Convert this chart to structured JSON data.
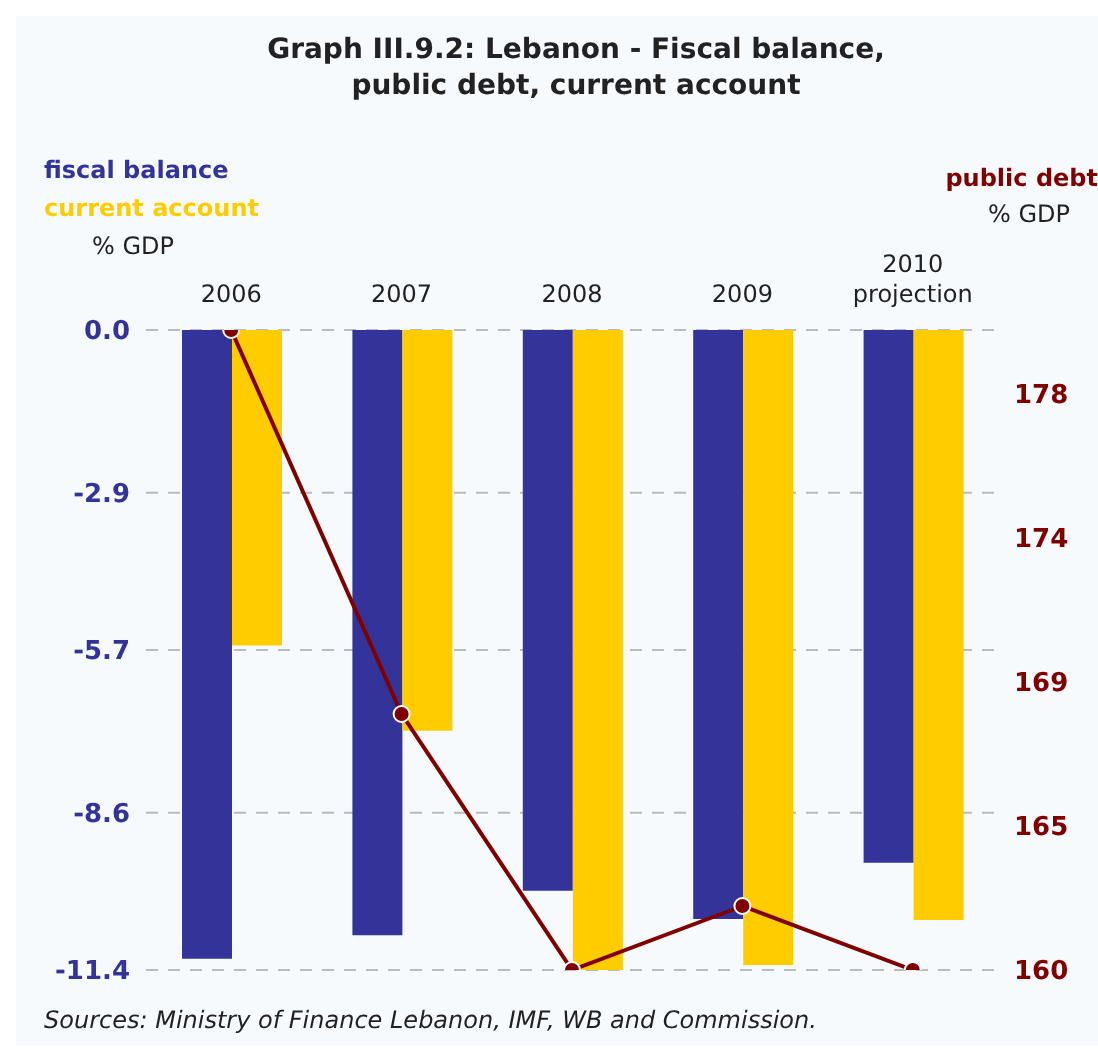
{
  "chart_data": {
    "type": "bar",
    "title": "Graph III.9.2: Lebanon - Fiscal balance, public debt, current account",
    "categories": [
      "2006",
      "2007",
      "2008",
      "2009",
      "2010 projection"
    ],
    "ylabel": "% GDP",
    "y2label": "% GDP",
    "series": [
      {
        "name": "fiscal balance",
        "color": "#333399",
        "values": [
          -11.2,
          -10.78,
          -9.99,
          -10.49,
          -9.49
        ]
      },
      {
        "name": "current account",
        "color": "#ffcc00",
        "values": [
          -5.62,
          -7.14,
          -11.4,
          -11.31,
          -10.51
        ]
      },
      {
        "name": "public debt",
        "type": "line",
        "axis": "y2",
        "color": "#800000",
        "values": [
          180,
          168,
          160,
          162,
          160
        ]
      }
    ],
    "ylim": [
      -11.4,
      0
    ],
    "yticks": [
      {
        "value": 0,
        "label": "0.0"
      },
      -2.9,
      -5.7,
      -8.6,
      -11.4
    ],
    "y2lim": [
      160,
      180
    ],
    "y2ticks": [
      160,
      {
        "value": 164.5,
        "label": "165"
      },
      169,
      {
        "value": 173.5,
        "label": "174"
      },
      178
    ],
    "grid": "y",
    "legend": "top left",
    "marker": "circle",
    "annotations": [
      "Sources: Ministry of Finance Lebanon, IMF, WB and Commission."
    ]
  }
}
